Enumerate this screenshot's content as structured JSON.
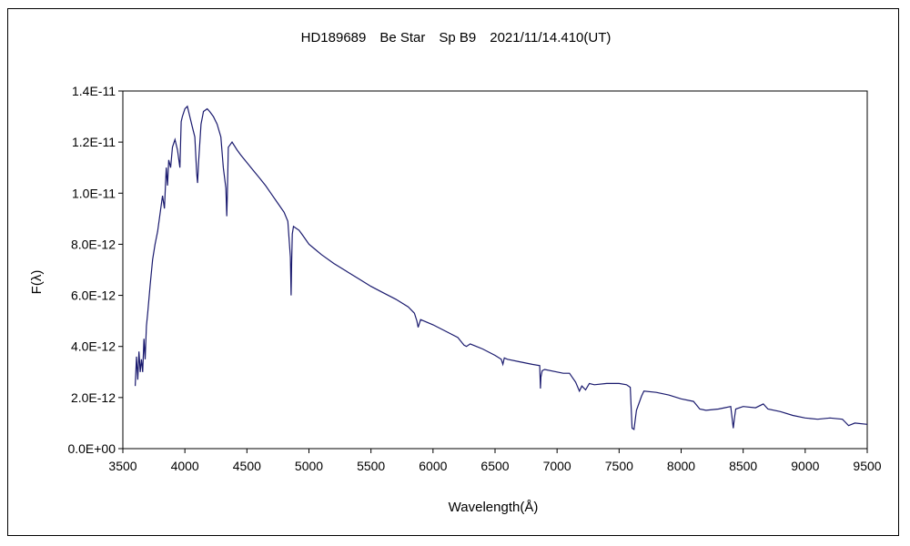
{
  "chart_data": {
    "type": "line",
    "title": "HD189689　Be Star　Sp B9　2021/11/14.410(UT)",
    "xlabel": "Wavelength(Å)",
    "ylabel": "F(λ)",
    "xlim": [
      3500,
      9500
    ],
    "ylim": [
      0,
      1.4e-11
    ],
    "x_ticks": [
      3500,
      4000,
      4500,
      5000,
      5500,
      6000,
      6500,
      7000,
      7500,
      8000,
      8500,
      9000,
      9500
    ],
    "x_tick_labels": [
      "3500",
      "4000",
      "4500",
      "5000",
      "5500",
      "6000",
      "6500",
      "7000",
      "7500",
      "8000",
      "8500",
      "9000",
      "9500"
    ],
    "y_ticks": [
      0,
      2e-12,
      4e-12,
      6e-12,
      8e-12,
      1e-11,
      1.2e-11,
      1.4e-11
    ],
    "y_tick_labels": [
      "0.0E+00",
      "2.0E-12",
      "4.0E-12",
      "6.0E-12",
      "8.0E-12",
      "1.0E-11",
      "1.2E-11",
      "1.4E-11"
    ],
    "grid": false,
    "line_color": "#1a1a6e",
    "series": [
      {
        "x": [
          3600,
          3610,
          3620,
          3630,
          3640,
          3650,
          3660,
          3670,
          3680,
          3690,
          3700,
          3720,
          3740,
          3760,
          3780,
          3800,
          3820,
          3835,
          3850,
          3860,
          3870,
          3885,
          3900,
          3920,
          3940,
          3960,
          3970,
          3980,
          4000,
          4020,
          4040,
          4060,
          4080,
          4095,
          4102,
          4110,
          4130,
          4150,
          4180,
          4200,
          4230,
          4260,
          4290,
          4310,
          4330,
          4338,
          4342,
          4350,
          4380,
          4420,
          4450,
          4500,
          4550,
          4600,
          4650,
          4700,
          4750,
          4800,
          4830,
          4850,
          4856,
          4861,
          4866,
          4875,
          4890,
          4920,
          4950,
          5000,
          5050,
          5100,
          5200,
          5300,
          5400,
          5500,
          5600,
          5700,
          5800,
          5850,
          5870,
          5880,
          5900,
          6000,
          6100,
          6200,
          6250,
          6270,
          6300,
          6400,
          6500,
          6550,
          6563,
          6575,
          6600,
          6700,
          6800,
          6860,
          6866,
          6870,
          6880,
          6900,
          7000,
          7050,
          7100,
          7150,
          7180,
          7200,
          7230,
          7260,
          7300,
          7400,
          7500,
          7560,
          7590,
          7605,
          7620,
          7640,
          7680,
          7700,
          7800,
          7900,
          8000,
          8100,
          8150,
          8200,
          8300,
          8350,
          8400,
          8420,
          8430,
          8440,
          8500,
          8600,
          8662,
          8700,
          8800,
          8900,
          9000,
          9100,
          9200,
          9300,
          9320,
          9350,
          9400,
          9500
        ],
        "y": [
          2.45e-12,
          3.6e-12,
          2.7e-12,
          3.8e-12,
          3e-12,
          3.5e-12,
          3e-12,
          4.3e-12,
          3.5e-12,
          4.8e-12,
          5.3e-12,
          6.4e-12,
          7.4e-12,
          8e-12,
          8.5e-12,
          9.2e-12,
          9.9e-12,
          9.4e-12,
          1.1e-11,
          1.03e-11,
          1.13e-11,
          1.1e-11,
          1.18e-11,
          1.21e-11,
          1.17e-11,
          1.1e-11,
          1.28e-11,
          1.3e-11,
          1.33e-11,
          1.34e-11,
          1.3e-11,
          1.26e-11,
          1.22e-11,
          1.08e-11,
          1.04e-11,
          1.12e-11,
          1.27e-11,
          1.32e-11,
          1.33e-11,
          1.32e-11,
          1.3e-11,
          1.27e-11,
          1.22e-11,
          1.1e-11,
          1.02e-11,
          9.1e-12,
          9.9e-12,
          1.18e-11,
          1.2e-11,
          1.17e-11,
          1.15e-11,
          1.12e-11,
          1.09e-11,
          1.06e-11,
          1.03e-11,
          9.95e-12,
          9.6e-12,
          9.25e-12,
          8.9e-12,
          7.5e-12,
          6e-12,
          7.3e-12,
          8.4e-12,
          8.7e-12,
          8.65e-12,
          8.55e-12,
          8.35e-12,
          8e-12,
          7.8e-12,
          7.6e-12,
          7.25e-12,
          6.95e-12,
          6.65e-12,
          6.35e-12,
          6.1e-12,
          5.85e-12,
          5.55e-12,
          5.3e-12,
          5e-12,
          4.75e-12,
          5.05e-12,
          4.85e-12,
          4.6e-12,
          4.35e-12,
          4.05e-12,
          4e-12,
          4.1e-12,
          3.9e-12,
          3.65e-12,
          3.5e-12,
          3.3e-12,
          3.55e-12,
          3.5e-12,
          3.4e-12,
          3.3e-12,
          3.25e-12,
          2.35e-12,
          2.8e-12,
          3.05e-12,
          3.1e-12,
          3e-12,
          2.95e-12,
          2.95e-12,
          2.6e-12,
          2.25e-12,
          2.45e-12,
          2.3e-12,
          2.55e-12,
          2.5e-12,
          2.55e-12,
          2.55e-12,
          2.5e-12,
          2.4e-12,
          8e-13,
          7.5e-13,
          1.5e-12,
          2.05e-12,
          2.25e-12,
          2.2e-12,
          2.1e-12,
          1.95e-12,
          1.85e-12,
          1.55e-12,
          1.5e-12,
          1.55e-12,
          1.6e-12,
          1.65e-12,
          8e-13,
          1.2e-12,
          1.55e-12,
          1.65e-12,
          1.6e-12,
          1.75e-12,
          1.55e-12,
          1.45e-12,
          1.3e-12,
          1.2e-12,
          1.15e-12,
          1.2e-12,
          1.15e-12,
          1.05e-12,
          9e-13,
          1e-12,
          9.5e-13
        ]
      }
    ]
  }
}
